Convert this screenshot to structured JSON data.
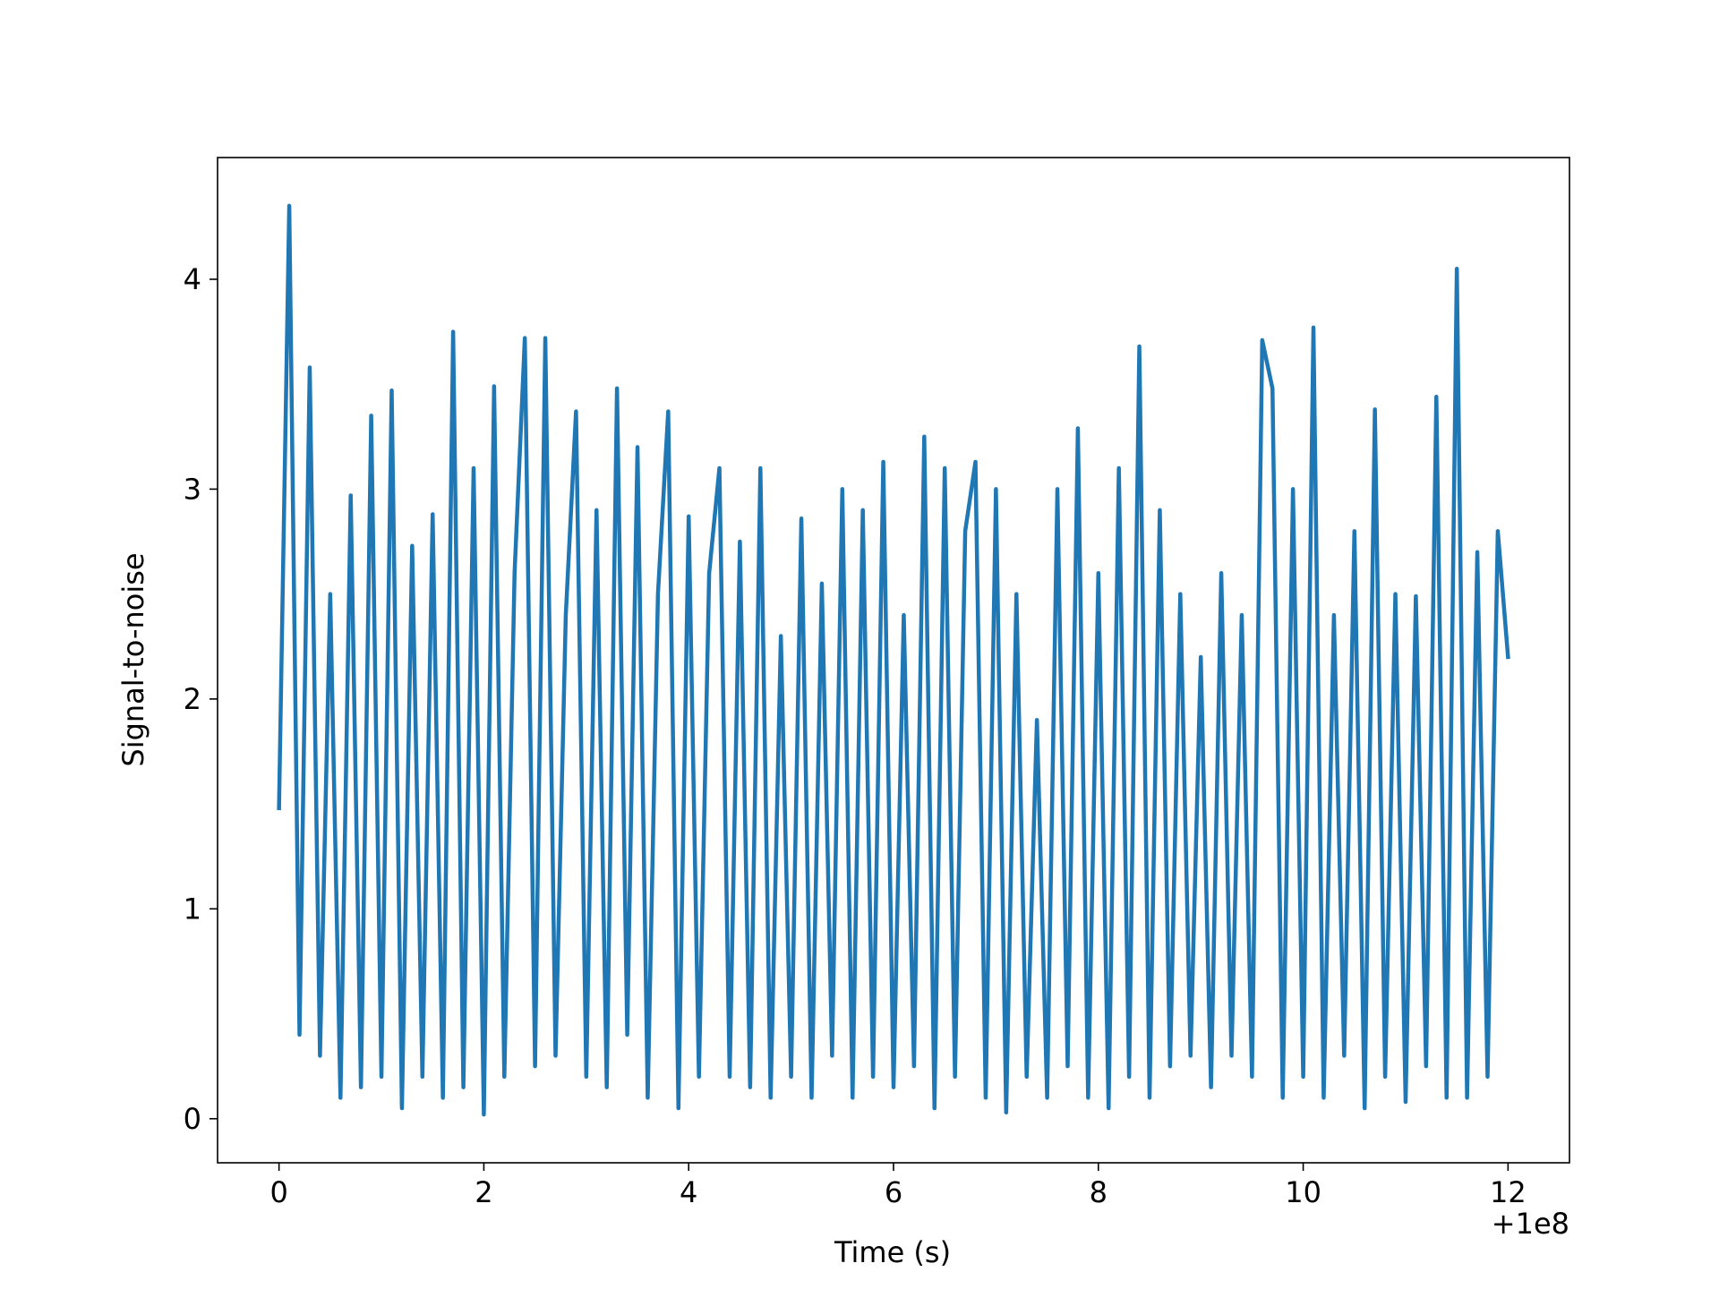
{
  "chart_data": {
    "type": "line",
    "x_label": "Time (s)",
    "y_label": "Signal-to-noise",
    "x_offset": "+1e8",
    "x": [
      100000000,
      100000000.1,
      100000000.2,
      100000000.3,
      100000000.4,
      100000000.5,
      100000000.6,
      100000000.7,
      100000000.8,
      100000000.9,
      100000001,
      100000001.1,
      100000001.2,
      100000001.3,
      100000001.4,
      100000001.5,
      100000001.6,
      100000001.7,
      100000001.8,
      100000001.9,
      100000002,
      100000002.1,
      100000002.2,
      100000002.3,
      100000002.4,
      100000002.5,
      100000002.6,
      100000002.7,
      100000002.8,
      100000002.9,
      100000003,
      100000003.1,
      100000003.2,
      100000003.3,
      100000003.4,
      100000003.5,
      100000003.6,
      100000003.7,
      100000003.8,
      100000003.9,
      100000004,
      100000004.1,
      100000004.2,
      100000004.3,
      100000004.4,
      100000004.5,
      100000004.6,
      100000004.7,
      100000004.8,
      100000004.9,
      100000005,
      100000005.1,
      100000005.2,
      100000005.3,
      100000005.4,
      100000005.5,
      100000005.6,
      100000005.7,
      100000005.8,
      100000005.9,
      100000006,
      100000006.1,
      100000006.2,
      100000006.3,
      100000006.4,
      100000006.5,
      100000006.6,
      100000006.7,
      100000006.8,
      100000006.9,
      100000007,
      100000007.1,
      100000007.2,
      100000007.3,
      100000007.4,
      100000007.5,
      100000007.6,
      100000007.7,
      100000007.8,
      100000007.9,
      100000008,
      100000008.1,
      100000008.2,
      100000008.3,
      100000008.4,
      100000008.5,
      100000008.6,
      100000008.7,
      100000008.8,
      100000008.9,
      100000009,
      100000009.1,
      100000009.2,
      100000009.3,
      100000009.4,
      100000009.5,
      100000009.6,
      100000009.7,
      100000009.8,
      100000009.9,
      100000010,
      100000010.1,
      100000010.2,
      100000010.3,
      100000010.4,
      100000010.5,
      100000010.6,
      100000010.7,
      100000010.8,
      100000010.9,
      100000011,
      100000011.1,
      100000011.2,
      100000011.3,
      100000011.4,
      100000011.5,
      100000011.6,
      100000011.7,
      100000011.8,
      100000011.9,
      100000012
    ],
    "series": [
      {
        "color": "#1f77b4",
        "values": [
          1.48,
          4.35,
          0.4,
          3.58,
          0.3,
          2.5,
          0.1,
          2.97,
          0.15,
          3.35,
          0.2,
          3.47,
          0.05,
          2.73,
          0.2,
          2.88,
          0.1,
          3.75,
          0.15,
          3.1,
          0.02,
          3.49,
          0.2,
          2.6,
          3.72,
          0.25,
          3.72,
          0.3,
          2.4,
          3.37,
          0.2,
          2.9,
          0.15,
          3.48,
          0.4,
          3.2,
          0.1,
          2.5,
          3.37,
          0.05,
          2.87,
          0.2,
          2.6,
          3.1,
          0.2,
          2.75,
          0.15,
          3.1,
          0.1,
          2.3,
          0.2,
          2.86,
          0.1,
          2.55,
          0.3,
          3.0,
          0.1,
          2.9,
          0.2,
          3.13,
          0.15,
          2.4,
          0.25,
          3.25,
          0.05,
          3.1,
          0.2,
          2.8,
          3.13,
          0.1,
          3.0,
          0.03,
          2.5,
          0.2,
          1.9,
          0.1,
          3.0,
          0.25,
          3.29,
          0.1,
          2.6,
          0.05,
          3.1,
          0.2,
          3.68,
          0.1,
          2.9,
          0.25,
          2.5,
          0.3,
          2.2,
          0.15,
          2.6,
          0.3,
          2.4,
          0.2,
          3.71,
          3.48,
          0.1,
          3.0,
          0.2,
          3.77,
          0.1,
          2.4,
          0.3,
          2.8,
          0.05,
          3.38,
          0.2,
          2.5,
          0.08,
          2.49,
          0.25,
          3.44,
          0.1,
          4.05,
          0.1,
          2.7,
          0.2,
          2.8,
          2.2
        ]
      }
    ],
    "xlim": [
      99999999.4,
      100000012.6
    ],
    "ylim": [
      -0.21,
      4.58
    ],
    "xticks": [
      {
        "value": 100000000,
        "label": "0"
      },
      {
        "value": 100000002,
        "label": "2"
      },
      {
        "value": 100000004,
        "label": "4"
      },
      {
        "value": 100000006,
        "label": "6"
      },
      {
        "value": 100000008,
        "label": "8"
      },
      {
        "value": 100000010,
        "label": "10"
      },
      {
        "value": 100000012,
        "label": "12"
      }
    ],
    "yticks": [
      0,
      1,
      2,
      3,
      4
    ],
    "grid": false
  }
}
